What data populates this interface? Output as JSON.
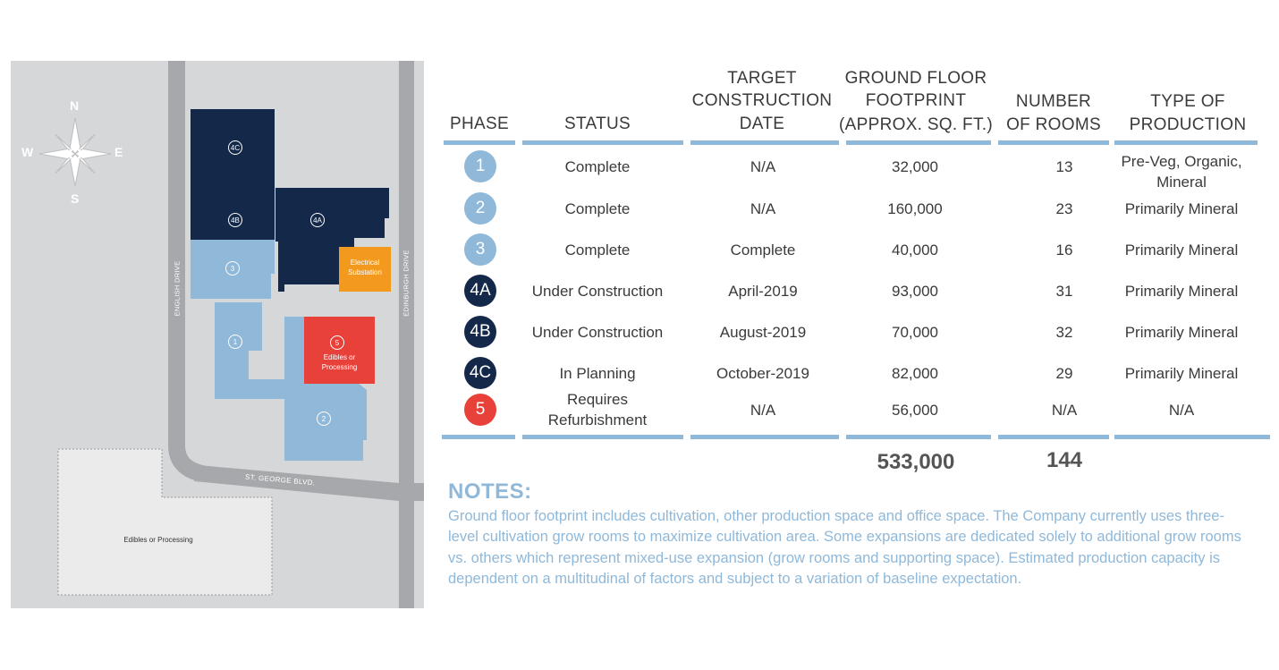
{
  "map": {
    "compass": {
      "n": "N",
      "s": "S",
      "e": "E",
      "w": "W"
    },
    "roads": {
      "english": "ENGLISH DRIVE",
      "edinburgh": "EDINBURGH DRIVE",
      "stgeorge": "ST. GEORGE BLVD."
    },
    "labels": {
      "p4c": "4C",
      "p4b": "4B",
      "p4a": "4A",
      "p3": "3",
      "p1": "1",
      "p5": "5",
      "p2": "2",
      "electrical": [
        "Electrical",
        "Substation"
      ],
      "edibles5": [
        "Edibles or",
        "Processing"
      ],
      "edibles_lot": "Edibles or Processing"
    },
    "colors": {
      "navy": "#14294a",
      "light_blue": "#8fb8d9",
      "orange": "#f39a1e",
      "red": "#e8413a",
      "ground": "#d6d7d9",
      "road": "#a6a8ab"
    }
  },
  "table": {
    "headers": {
      "phase": "PHASE",
      "status": "STATUS",
      "target": [
        "TARGET",
        "CONSTRUCTION",
        "DATE"
      ],
      "footprint": [
        "GROUND FLOOR",
        "FOOTPRINT",
        "(APPROX. SQ. FT.)"
      ],
      "rooms": [
        "NUMBER",
        "OF ROOMS"
      ],
      "production": [
        "TYPE OF",
        "PRODUCTION"
      ]
    },
    "rows": [
      {
        "phase": "1",
        "badge_color": "#8fb8d9",
        "status": [
          "Complete"
        ],
        "date": "N/A",
        "footprint": "32,000",
        "rooms": "13",
        "production": [
          "Pre-Veg, Organic,",
          "Mineral"
        ]
      },
      {
        "phase": "2",
        "badge_color": "#8fb8d9",
        "status": [
          "Complete"
        ],
        "date": "N/A",
        "footprint": "160,000",
        "rooms": "23",
        "production": [
          "Primarily Mineral"
        ]
      },
      {
        "phase": "3",
        "badge_color": "#8fb8d9",
        "status": [
          "Complete"
        ],
        "date": "Complete",
        "footprint": "40,000",
        "rooms": "16",
        "production": [
          "Primarily Mineral"
        ]
      },
      {
        "phase": "4A",
        "badge_color": "#14294a",
        "status": [
          "Under Construction"
        ],
        "date": "April-2019",
        "footprint": "93,000",
        "rooms": "31",
        "production": [
          "Primarily Mineral"
        ]
      },
      {
        "phase": "4B",
        "badge_color": "#14294a",
        "status": [
          "Under Construction"
        ],
        "date": "August-2019",
        "footprint": "70,000",
        "rooms": "32",
        "production": [
          "Primarily Mineral"
        ]
      },
      {
        "phase": "4C",
        "badge_color": "#14294a",
        "status": [
          "In Planning"
        ],
        "date": "October-2019",
        "footprint": "82,000",
        "rooms": "29",
        "production": [
          "Primarily Mineral"
        ]
      },
      {
        "phase": "5",
        "badge_color": "#e8413a",
        "status": [
          "Requires",
          "Refurbishment"
        ],
        "date": "N/A",
        "footprint": "56,000",
        "rooms": "N/A",
        "production": [
          "N/A"
        ]
      }
    ],
    "totals": {
      "footprint": "533,000",
      "rooms": "144"
    }
  },
  "notes": {
    "title": "NOTES:",
    "body": "Ground floor footprint includes cultivation, other production space and office space. The Company currently uses three-level cultivation grow rooms to maximize cultivation area. Some expansions are dedicated solely to additional grow rooms vs. others which represent mixed-use expansion (grow rooms and supporting space). Estimated production capacity is dependent on a multitudinal of factors and subject to a variation of baseline expectation."
  }
}
